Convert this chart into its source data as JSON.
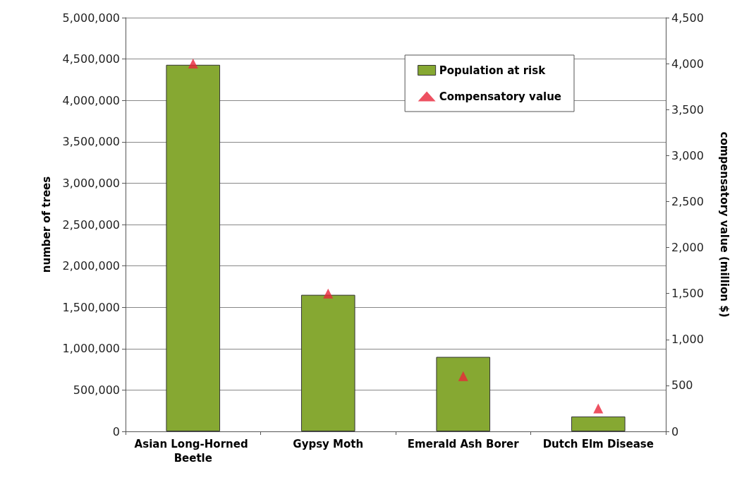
{
  "chart_data": {
    "type": "bar",
    "categories": [
      "Asian Long-Horned Beetle",
      "Gypsy Moth",
      "Emerald Ash Borer",
      "Dutch Elm Disease"
    ],
    "series": [
      {
        "name": "Population at risk",
        "color": "#86a832",
        "values": [
          4430000,
          1650000,
          900000,
          180000
        ]
      },
      {
        "name": "Compensatory value",
        "type": "scatter",
        "axis": "y2",
        "marker": "triangle",
        "color": "#e8263a",
        "values": [
          4000,
          1500,
          600,
          250
        ]
      }
    ],
    "ylabel": "number of trees",
    "y2label": "compensatory value (million $)",
    "ylim": [
      0,
      5000000
    ],
    "yticks": [
      0,
      {
        "value": 500000,
        "label": "500,000"
      },
      {
        "value": 1000000,
        "label": "1,000,000"
      },
      {
        "value": 1500000,
        "label": "1,500,000"
      },
      {
        "value": 2000000,
        "label": "2,000,000"
      },
      {
        "value": 2500000,
        "label": "2,500,000"
      },
      {
        "value": 3000000,
        "label": "3,000,000"
      },
      {
        "value": 3500000,
        "label": "3,500,000"
      },
      {
        "value": 4000000,
        "label": "4,000,000"
      },
      {
        "value": 4500000,
        "label": "4,500,000"
      },
      {
        "value": 5000000,
        "label": "5,000,000"
      }
    ],
    "y2lim": [
      0,
      4500
    ],
    "y2ticks": [
      0,
      500,
      {
        "value": 1000,
        "label": "1,000"
      },
      {
        "value": 1500,
        "label": "1,500"
      },
      {
        "value": 2000,
        "label": "2,000"
      },
      {
        "value": 2500,
        "label": "2,500"
      },
      {
        "value": 3000,
        "label": "3,000"
      },
      {
        "value": 3500,
        "label": "3,500"
      },
      {
        "value": 4000,
        "label": "4,000"
      },
      {
        "value": 4500,
        "label": "4,500"
      }
    ],
    "grid": "y",
    "legend": "top right"
  }
}
